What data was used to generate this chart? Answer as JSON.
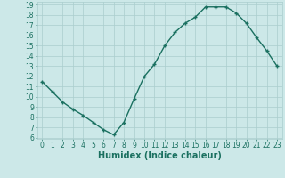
{
  "x": [
    0,
    1,
    2,
    3,
    4,
    5,
    6,
    7,
    8,
    9,
    10,
    11,
    12,
    13,
    14,
    15,
    16,
    17,
    18,
    19,
    20,
    21,
    22,
    23
  ],
  "y": [
    11.5,
    10.5,
    9.5,
    8.8,
    8.2,
    7.5,
    6.8,
    6.3,
    7.5,
    9.8,
    12.0,
    13.2,
    15.0,
    16.3,
    17.2,
    17.8,
    18.8,
    18.8,
    18.8,
    18.2,
    17.2,
    15.8,
    14.5,
    13.0
  ],
  "xlabel": "Humidex (Indice chaleur)",
  "ylim": [
    6,
    19
  ],
  "xlim": [
    -0.5,
    23.5
  ],
  "yticks": [
    6,
    7,
    8,
    9,
    10,
    11,
    12,
    13,
    14,
    15,
    16,
    17,
    18,
    19
  ],
  "xticks": [
    0,
    1,
    2,
    3,
    4,
    5,
    6,
    7,
    8,
    9,
    10,
    11,
    12,
    13,
    14,
    15,
    16,
    17,
    18,
    19,
    20,
    21,
    22,
    23
  ],
  "xtick_labels": [
    "0",
    "1",
    "2",
    "3",
    "4",
    "5",
    "6",
    "7",
    "8",
    "9",
    "10",
    "11",
    "12",
    "13",
    "14",
    "15",
    "16",
    "17",
    "18",
    "19",
    "20",
    "21",
    "22",
    "23"
  ],
  "line_color": "#1a7060",
  "marker": "+",
  "bg_color": "#cce8e8",
  "grid_color": "#aacece",
  "axis_label_color": "#1a7060",
  "tick_color": "#1a7060",
  "tick_fontsize": 5.5,
  "xlabel_fontsize": 7.0,
  "linewidth": 1.0,
  "markersize": 3.5,
  "markeredgewidth": 1.0
}
